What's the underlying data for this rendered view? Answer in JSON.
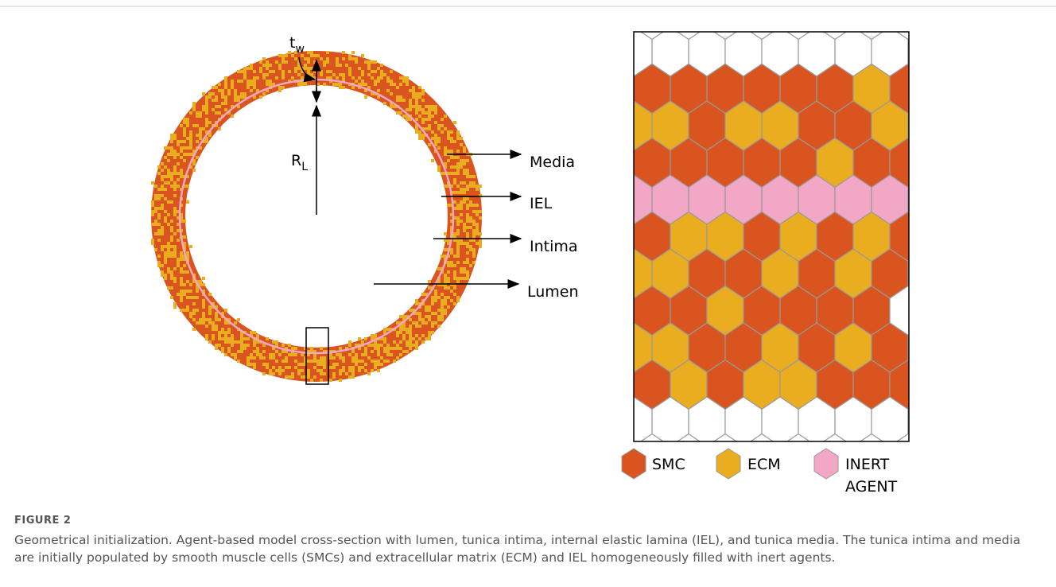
{
  "figure": {
    "labels": {
      "tw_main": "t",
      "tw_sub": "w",
      "rl_main": "R",
      "rl_sub": "L",
      "media": "Media",
      "iel": "IEL",
      "intima": "Intima",
      "lumen": "Lumen"
    },
    "legend": {
      "smc": "SMC",
      "ecm": "ECM",
      "inert": [
        "INERT",
        "AGENT"
      ]
    },
    "number": "FIGURE 2",
    "caption": "Geometrical initialization. Agent-based model cross-section with lumen, tunica intima, internal elastic lamina (IEL), and tunica media. The tunica intima and media are initially populated by smooth muscle cells (SMCs) and extracellular matrix (ECM) and IEL homogeneously filled with inert agents."
  }
}
